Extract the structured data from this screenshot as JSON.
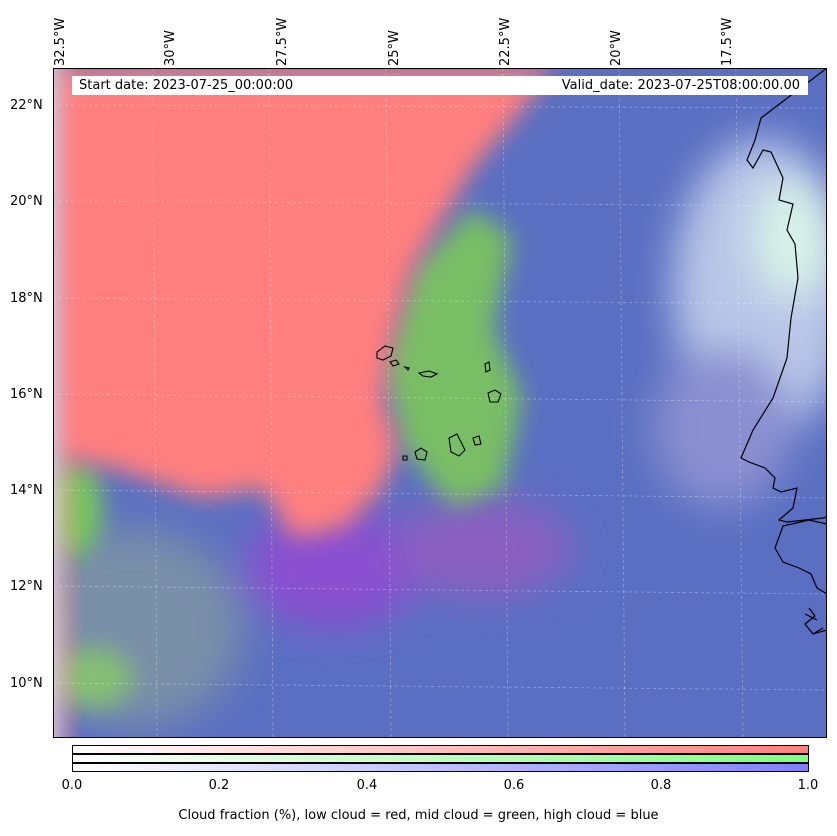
{
  "map": {
    "longitude_labels": [
      "32.5°W",
      "30°W",
      "27.5°W",
      "25°W",
      "22.5°W",
      "20°W",
      "17.5°W"
    ],
    "latitude_labels": [
      "22°N",
      "20°N",
      "18°N",
      "16°N",
      "14°N",
      "12°N",
      "10°N"
    ],
    "start_date": "Start date: 2023-07-25_00:00:00",
    "valid_date": "Valid_date: 2023-07-25T08:00:00.00",
    "layers": {
      "low_cloud_color": "#ff7f7f",
      "mid_cloud_color": "#7fff7f",
      "high_cloud_color": "#7f7fff"
    }
  },
  "colorbar": {
    "ticks": [
      "0.0",
      "0.2",
      "0.4",
      "0.6",
      "0.8",
      "1.0"
    ],
    "label": "Cloud fraction (%), low cloud = red, mid cloud = green, high cloud = blue"
  }
}
